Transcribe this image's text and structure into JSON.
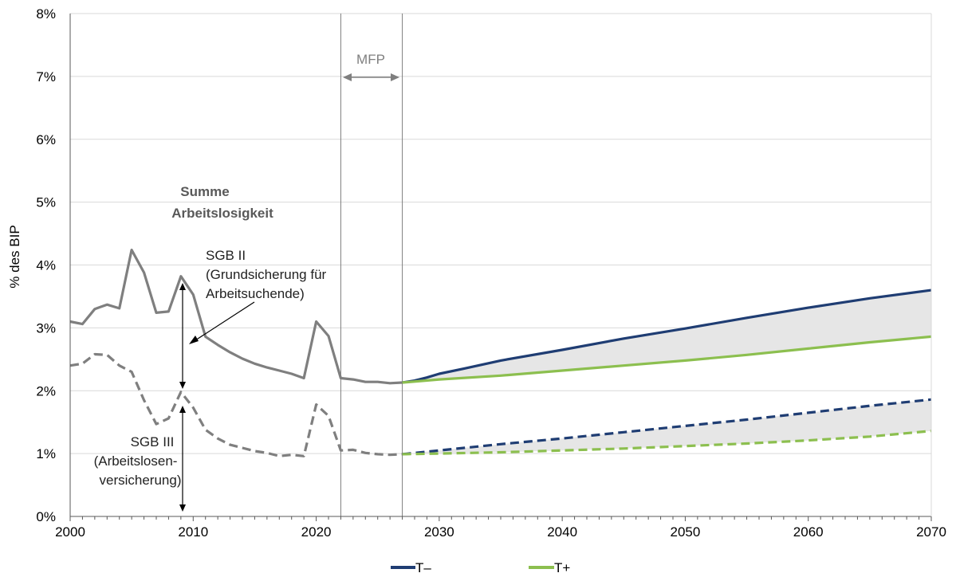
{
  "chart_data": {
    "type": "line",
    "ylabel": "% des BIP",
    "xlim": [
      2000,
      2070
    ],
    "ylim": [
      0,
      8
    ],
    "x_ticks": [
      "2000",
      "2010",
      "2020",
      "2030",
      "2040",
      "2050",
      "2060",
      "2070"
    ],
    "y_ticks": [
      "0%",
      "1%",
      "2%",
      "3%",
      "4%",
      "5%",
      "6%",
      "7%",
      "8%"
    ],
    "grid": "horizontal",
    "legend": {
      "placement": "bottom",
      "entries": [
        {
          "name": "T–",
          "color": "#1f3d73"
        },
        {
          "name": "T+",
          "color": "#8cbf4f"
        }
      ]
    },
    "vertical_markers": [
      2022,
      2027
    ],
    "annotations": {
      "mfp": "MFP",
      "summe_line1": "Summe",
      "summe_line2": "Arbeitslosigkeit",
      "sgb2_line1": "SGB II",
      "sgb2_line2": "(Grundsicherung für",
      "sgb2_line3": "Arbeitsuchende)",
      "sgb3_line1": "SGB III",
      "sgb3_line2": "(Arbeitslosen-",
      "sgb3_line3": "versicherung)"
    },
    "series": [
      {
        "name": "Summe Arbeitslosigkeit (historisch)",
        "color": "#7f7f7f",
        "style": "solid",
        "x": [
          2000,
          2001,
          2002,
          2003,
          2004,
          2005,
          2006,
          2007,
          2008,
          2009,
          2010,
          2011,
          2012,
          2013,
          2014,
          2015,
          2016,
          2017,
          2018,
          2019,
          2020,
          2021,
          2022,
          2023,
          2024,
          2025,
          2026,
          2027
        ],
        "y": [
          3.1,
          3.06,
          3.3,
          3.37,
          3.31,
          4.24,
          3.88,
          3.24,
          3.26,
          3.82,
          3.53,
          2.86,
          2.73,
          2.61,
          2.51,
          2.43,
          2.37,
          2.32,
          2.27,
          2.2,
          3.1,
          2.87,
          2.2,
          2.18,
          2.14,
          2.14,
          2.12,
          2.13
        ]
      },
      {
        "name": "SGB III (historisch)",
        "color": "#7f7f7f",
        "style": "dashed",
        "x": [
          2000,
          2001,
          2002,
          2003,
          2004,
          2005,
          2006,
          2007,
          2008,
          2009,
          2010,
          2011,
          2012,
          2013,
          2014,
          2015,
          2016,
          2017,
          2018,
          2019,
          2020,
          2021,
          2022,
          2023,
          2024,
          2025,
          2026,
          2027
        ],
        "y": [
          2.4,
          2.43,
          2.58,
          2.57,
          2.4,
          2.3,
          1.85,
          1.47,
          1.56,
          1.98,
          1.73,
          1.38,
          1.24,
          1.14,
          1.09,
          1.04,
          1.01,
          0.96,
          0.98,
          0.96,
          1.78,
          1.6,
          1.05,
          1.06,
          1.01,
          0.99,
          0.98,
          0.99
        ]
      },
      {
        "name": "T– Summe",
        "color": "#1f3d73",
        "style": "solid",
        "x": [
          2027,
          2028,
          2029,
          2030,
          2032,
          2035,
          2040,
          2045,
          2050,
          2055,
          2060,
          2065,
          2070
        ],
        "y": [
          2.13,
          2.16,
          2.21,
          2.27,
          2.35,
          2.48,
          2.65,
          2.83,
          2.99,
          3.16,
          3.32,
          3.47,
          3.6
        ]
      },
      {
        "name": "T+ Summe",
        "color": "#8cbf4f",
        "style": "solid",
        "x": [
          2027,
          2030,
          2035,
          2040,
          2045,
          2050,
          2055,
          2060,
          2065,
          2070
        ],
        "y": [
          2.13,
          2.18,
          2.24,
          2.32,
          2.4,
          2.48,
          2.57,
          2.67,
          2.77,
          2.86
        ]
      },
      {
        "name": "T– SGB III",
        "color": "#1f3d73",
        "style": "dashed",
        "x": [
          2027,
          2030,
          2035,
          2040,
          2045,
          2050,
          2055,
          2060,
          2065,
          2070
        ],
        "y": [
          0.99,
          1.05,
          1.15,
          1.24,
          1.34,
          1.44,
          1.54,
          1.65,
          1.76,
          1.86
        ]
      },
      {
        "name": "T+ SGB III",
        "color": "#8cbf4f",
        "style": "dashed",
        "x": [
          2027,
          2030,
          2035,
          2040,
          2045,
          2050,
          2055,
          2060,
          2065,
          2070
        ],
        "y": [
          0.99,
          1.0,
          1.02,
          1.05,
          1.08,
          1.12,
          1.16,
          1.21,
          1.27,
          1.36
        ]
      }
    ]
  }
}
